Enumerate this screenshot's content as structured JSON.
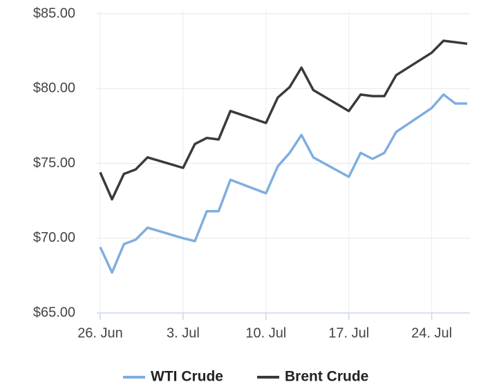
{
  "chart_data": {
    "type": "line",
    "x": [
      "06-26",
      "06-27",
      "06-28",
      "06-29",
      "06-30",
      "07-03",
      "07-04",
      "07-05",
      "07-06",
      "07-07",
      "07-10",
      "07-11",
      "07-12",
      "07-13",
      "07-14",
      "07-17",
      "07-18",
      "07-19",
      "07-20",
      "07-21",
      "07-24",
      "07-25",
      "07-26",
      "07-27"
    ],
    "series": [
      {
        "name": "WTI Crude",
        "color": "#7eaee0",
        "values": [
          69.4,
          67.7,
          69.6,
          69.9,
          70.7,
          70.0,
          69.8,
          71.8,
          71.8,
          73.9,
          73.0,
          74.8,
          75.7,
          76.9,
          75.4,
          74.1,
          75.7,
          75.3,
          75.7,
          77.1,
          78.7,
          79.6,
          79.0,
          79.0
        ]
      },
      {
        "name": "Brent Crude",
        "color": "#3a3a3c",
        "values": [
          74.4,
          72.6,
          74.3,
          74.6,
          75.4,
          74.7,
          76.3,
          76.7,
          76.6,
          78.5,
          77.7,
          79.4,
          80.1,
          81.4,
          79.9,
          78.5,
          79.6,
          79.5,
          79.5,
          80.9,
          82.4,
          83.2,
          83.1,
          83.0
        ]
      }
    ],
    "xlim": [
      "06-26",
      "07-27"
    ],
    "xticks": [
      {
        "value": "06-26",
        "label": "26. Jun"
      },
      {
        "value": "07-03",
        "label": "3. Jul"
      },
      {
        "value": "07-10",
        "label": "10. Jul"
      },
      {
        "value": "07-17",
        "label": "17. Jul"
      },
      {
        "value": "07-24",
        "label": "24. Jul"
      }
    ],
    "ylim": [
      65,
      85
    ],
    "yticks": [
      {
        "value": 65,
        "label": "$65.00"
      },
      {
        "value": 70,
        "label": "$70.00"
      },
      {
        "value": 75,
        "label": "$75.00"
      },
      {
        "value": 80,
        "label": "$80.00"
      },
      {
        "value": 85,
        "label": "$85.00"
      }
    ],
    "grid": true,
    "legend": "bottom"
  }
}
